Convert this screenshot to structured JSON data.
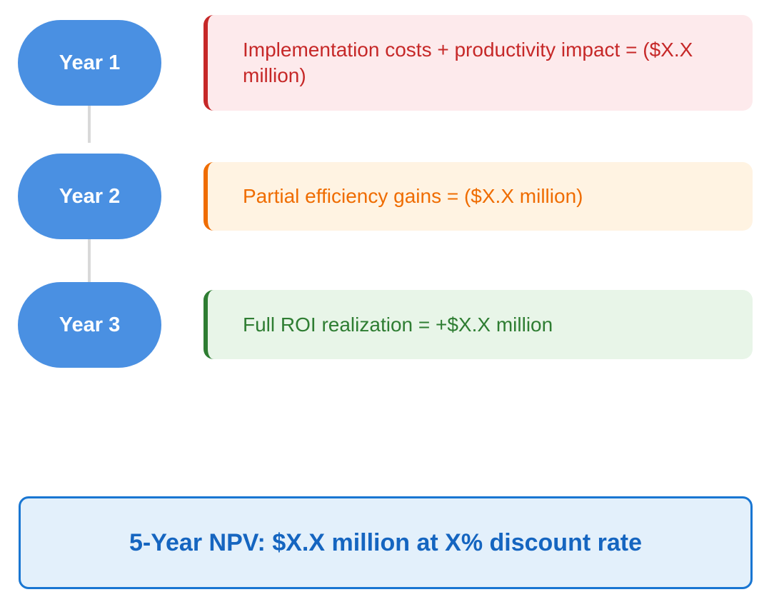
{
  "timeline": [
    {
      "year_label": "Year 1",
      "description": "Implementation costs + productivity impact = ($X.X million)",
      "accent_color": "#c62828"
    },
    {
      "year_label": "Year 2",
      "description": "Partial efficiency gains = ($X.X million)",
      "accent_color": "#ef6c00"
    },
    {
      "year_label": "Year 3",
      "description": "Full ROI realization = +$X.X million",
      "accent_color": "#2e7d32"
    }
  ],
  "summary": {
    "text": "5-Year NPV: $X.X million at X% discount rate",
    "accent_color": "#1976d2"
  },
  "colors": {
    "year_pill": "#4a90e2",
    "connector": "#d9d9d9"
  }
}
